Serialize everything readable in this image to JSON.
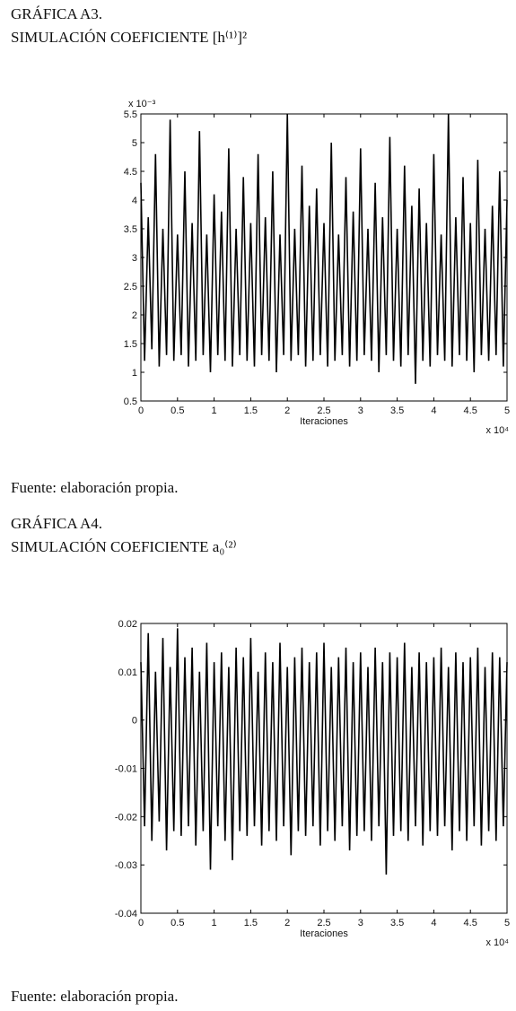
{
  "chart_data": [
    {
      "type": "line",
      "title": "GRÁFICA A3.",
      "subtitle": "SIMULACIÓN COEFICIENTE [h⁽¹⁾]²",
      "x_label": "Iteraciones",
      "x_scale_label": "x 10⁴",
      "y_scale_label": "x 10⁻³",
      "xlim": [
        0,
        5
      ],
      "xticks": [
        0,
        0.5,
        1,
        1.5,
        2,
        2.5,
        3,
        3.5,
        4,
        4.5,
        5
      ],
      "ylim": [
        0.5,
        5.5
      ],
      "yticks": [
        0.5,
        1,
        1.5,
        2,
        2.5,
        3,
        3.5,
        4,
        4.5,
        5,
        5.5
      ],
      "x": [
        0,
        0.05,
        0.1,
        0.15,
        0.2,
        0.25,
        0.3,
        0.35,
        0.4,
        0.45,
        0.5,
        0.55,
        0.6,
        0.65,
        0.7,
        0.75,
        0.8,
        0.85,
        0.9,
        0.95,
        1,
        1.05,
        1.1,
        1.15,
        1.2,
        1.25,
        1.3,
        1.35,
        1.4,
        1.45,
        1.5,
        1.55,
        1.6,
        1.65,
        1.7,
        1.75,
        1.8,
        1.85,
        1.9,
        1.95,
        2,
        2.05,
        2.1,
        2.15,
        2.2,
        2.25,
        2.3,
        2.35,
        2.4,
        2.45,
        2.5,
        2.55,
        2.6,
        2.65,
        2.7,
        2.75,
        2.8,
        2.85,
        2.9,
        2.95,
        3,
        3.05,
        3.1,
        3.15,
        3.2,
        3.25,
        3.3,
        3.35,
        3.4,
        3.45,
        3.5,
        3.55,
        3.6,
        3.65,
        3.7,
        3.75,
        3.8,
        3.85,
        3.9,
        3.95,
        4,
        4.05,
        4.1,
        4.15,
        4.2,
        4.25,
        4.3,
        4.35,
        4.4,
        4.45,
        4.5,
        4.55,
        4.6,
        4.65,
        4.7,
        4.75,
        4.8,
        4.85,
        4.9,
        4.95,
        5
      ],
      "series": [
        {
          "color": "#000000",
          "values": [
            4.3,
            1.2,
            3.7,
            1.4,
            4.8,
            1.1,
            3.5,
            1.3,
            5.4,
            1.2,
            3.4,
            1.3,
            4.5,
            1.1,
            3.6,
            1.2,
            5.2,
            1.3,
            3.4,
            1.0,
            4.1,
            1.3,
            3.8,
            1.2,
            4.9,
            1.1,
            3.5,
            1.3,
            4.4,
            1.2,
            3.6,
            1.1,
            4.8,
            1.3,
            3.7,
            1.2,
            4.5,
            1.0,
            3.4,
            1.3,
            5.5,
            1.2,
            3.5,
            1.3,
            4.6,
            1.1,
            3.9,
            1.2,
            4.2,
            1.3,
            3.6,
            1.1,
            5.0,
            1.2,
            3.4,
            1.3,
            4.4,
            1.1,
            3.8,
            1.2,
            4.9,
            1.3,
            3.5,
            1.2,
            4.3,
            1.0,
            3.7,
            1.3,
            5.1,
            1.2,
            3.5,
            1.1,
            4.6,
            1.3,
            3.9,
            0.8,
            4.2,
            1.2,
            3.6,
            1.1,
            4.8,
            1.3,
            3.4,
            1.2,
            5.5,
            1.1,
            3.7,
            1.3,
            4.4,
            1.2,
            3.6,
            1.0,
            4.7,
            1.3,
            3.5,
            1.2,
            3.9,
            1.3,
            4.5,
            1.1,
            4.0
          ]
        }
      ],
      "source": "Fuente: elaboración propia."
    },
    {
      "type": "line",
      "title": "GRÁFICA A4.",
      "subtitle": "SIMULACIÓN COEFICIENTE a₀⁽²⁾",
      "x_label": "Iteraciones",
      "x_scale_label": "x 10⁴",
      "xlim": [
        0,
        5
      ],
      "xticks": [
        0,
        0.5,
        1,
        1.5,
        2,
        2.5,
        3,
        3.5,
        4,
        4.5,
        5
      ],
      "ylim": [
        -0.04,
        0.02
      ],
      "yticks": [
        -0.04,
        -0.03,
        -0.02,
        -0.01,
        0,
        0.01,
        0.02
      ],
      "x": [
        0,
        0.05,
        0.1,
        0.15,
        0.2,
        0.25,
        0.3,
        0.35,
        0.4,
        0.45,
        0.5,
        0.55,
        0.6,
        0.65,
        0.7,
        0.75,
        0.8,
        0.85,
        0.9,
        0.95,
        1,
        1.05,
        1.1,
        1.15,
        1.2,
        1.25,
        1.3,
        1.35,
        1.4,
        1.45,
        1.5,
        1.55,
        1.6,
        1.65,
        1.7,
        1.75,
        1.8,
        1.85,
        1.9,
        1.95,
        2,
        2.05,
        2.1,
        2.15,
        2.2,
        2.25,
        2.3,
        2.35,
        2.4,
        2.45,
        2.5,
        2.55,
        2.6,
        2.65,
        2.7,
        2.75,
        2.8,
        2.85,
        2.9,
        2.95,
        3,
        3.05,
        3.1,
        3.15,
        3.2,
        3.25,
        3.3,
        3.35,
        3.4,
        3.45,
        3.5,
        3.55,
        3.6,
        3.65,
        3.7,
        3.75,
        3.8,
        3.85,
        3.9,
        3.95,
        4,
        4.05,
        4.1,
        4.15,
        4.2,
        4.25,
        4.3,
        4.35,
        4.4,
        4.45,
        4.5,
        4.55,
        4.6,
        4.65,
        4.7,
        4.75,
        4.8,
        4.85,
        4.9,
        4.95,
        5
      ],
      "series": [
        {
          "color": "#000000",
          "values": [
            0.012,
            -0.022,
            0.018,
            -0.025,
            0.01,
            -0.021,
            0.017,
            -0.027,
            0.011,
            -0.023,
            0.019,
            -0.024,
            0.013,
            -0.022,
            0.015,
            -0.026,
            0.01,
            -0.023,
            0.016,
            -0.031,
            0.012,
            -0.022,
            0.014,
            -0.025,
            0.011,
            -0.029,
            0.015,
            -0.023,
            0.013,
            -0.024,
            0.017,
            -0.022,
            0.01,
            -0.026,
            0.014,
            -0.023,
            0.012,
            -0.025,
            0.016,
            -0.022,
            0.011,
            -0.028,
            0.013,
            -0.023,
            0.015,
            -0.024,
            0.012,
            -0.022,
            0.014,
            -0.026,
            0.016,
            -0.023,
            0.011,
            -0.025,
            0.013,
            -0.022,
            0.015,
            -0.027,
            0.012,
            -0.024,
            0.014,
            -0.023,
            0.011,
            -0.025,
            0.015,
            -0.022,
            0.012,
            -0.032,
            0.014,
            -0.024,
            0.013,
            -0.023,
            0.016,
            -0.025,
            0.011,
            -0.022,
            0.014,
            -0.026,
            0.012,
            -0.023,
            0.013,
            -0.024,
            0.015,
            -0.022,
            0.011,
            -0.027,
            0.014,
            -0.023,
            0.012,
            -0.025,
            0.013,
            -0.022,
            0.015,
            -0.026,
            0.011,
            -0.023,
            0.014,
            -0.025,
            0.013,
            -0.022,
            0.012
          ]
        }
      ],
      "source": "Fuente: elaboración propia."
    }
  ]
}
